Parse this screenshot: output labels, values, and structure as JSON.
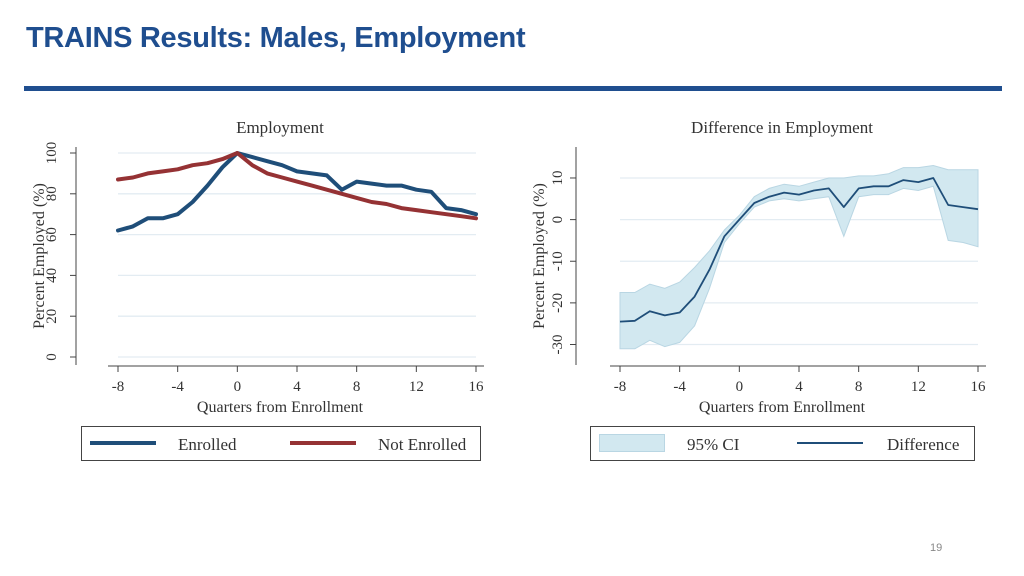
{
  "slide": {
    "title": "TRAINS Results: Males, Employment",
    "page_number": "19"
  },
  "colors": {
    "accent": "#1f4e8f",
    "enrolled": "#1f4e79",
    "not_enrolled": "#953234",
    "difference": "#1f4e79",
    "ci": "#d2e8f0",
    "grid": "#e3ecf2"
  },
  "legends": {
    "left": {
      "enrolled_label": "Enrolled",
      "not_enrolled_label": "Not Enrolled"
    },
    "right": {
      "ci_label": "95% CI",
      "difference_label": "Difference"
    }
  },
  "chart_data": [
    {
      "type": "line",
      "title": "Employment",
      "xlabel": "Quarters from Enrollment",
      "ylabel": "Percent Employed (%)",
      "xlim": [
        -8,
        16
      ],
      "ylim": [
        0,
        100
      ],
      "xticks": [
        "-8",
        "-4",
        "0",
        "4",
        "8",
        "12",
        "16"
      ],
      "yticks": [
        "0",
        "20",
        "40",
        "60",
        "80",
        "100"
      ],
      "x": [
        -8,
        -7,
        -6,
        -5,
        -4,
        -3,
        -2,
        -1,
        0,
        1,
        2,
        3,
        4,
        5,
        6,
        7,
        8,
        9,
        10,
        11,
        12,
        13,
        14,
        15,
        16
      ],
      "series": [
        {
          "name": "Enrolled",
          "values": [
            62,
            64,
            68,
            68,
            70,
            76,
            84,
            93,
            100,
            98,
            96,
            94,
            91,
            90,
            89,
            82,
            86,
            85,
            84,
            84,
            82,
            81,
            73,
            72,
            70
          ]
        },
        {
          "name": "Not Enrolled",
          "values": [
            87,
            88,
            90,
            91,
            92,
            94,
            95,
            97,
            100,
            94,
            90,
            88,
            86,
            84,
            82,
            80,
            78,
            76,
            75,
            73,
            72,
            71,
            70,
            69,
            68
          ]
        }
      ]
    },
    {
      "type": "line",
      "title": "Difference in Employment",
      "xlabel": "Quarters from Enrollment",
      "ylabel": "Percent Employed (%)",
      "xlim": [
        -8,
        16
      ],
      "ylim": [
        -33,
        16
      ],
      "xticks": [
        "-8",
        "-4",
        "0",
        "4",
        "8",
        "12",
        "16"
      ],
      "yticks": [
        "-30",
        "-20",
        "-10",
        "0",
        "10"
      ],
      "x": [
        -8,
        -7,
        -6,
        -5,
        -4,
        -3,
        -2,
        -1,
        0,
        1,
        2,
        3,
        4,
        5,
        6,
        7,
        8,
        9,
        10,
        11,
        12,
        13,
        14,
        15,
        16
      ],
      "series": [
        {
          "name": "Difference",
          "values": [
            -24.5,
            -24.3,
            -22,
            -23,
            -22.3,
            -18.5,
            -12,
            -4,
            0,
            4,
            5.5,
            6.5,
            6,
            7,
            7.5,
            3,
            7.5,
            8,
            8,
            9.5,
            9,
            10,
            3.5,
            3,
            2.5
          ]
        },
        {
          "name": "95% CI lower",
          "values": [
            -31,
            -31,
            -29,
            -30.5,
            -29.5,
            -25.5,
            -16.5,
            -5.5,
            -1,
            3,
            4.5,
            5,
            4.5,
            5,
            5.5,
            -4,
            5.5,
            6,
            6,
            7.5,
            7,
            8,
            -5,
            -5.5,
            -6.5
          ]
        },
        {
          "name": "95% CI upper",
          "values": [
            -17.5,
            -17.5,
            -15.5,
            -16.5,
            -15,
            -11.5,
            -7.5,
            -2.5,
            1,
            5.5,
            7.5,
            8.5,
            8,
            9,
            10,
            10,
            10.5,
            10.5,
            11,
            12.5,
            12.5,
            13,
            12,
            12,
            12
          ]
        }
      ]
    }
  ]
}
